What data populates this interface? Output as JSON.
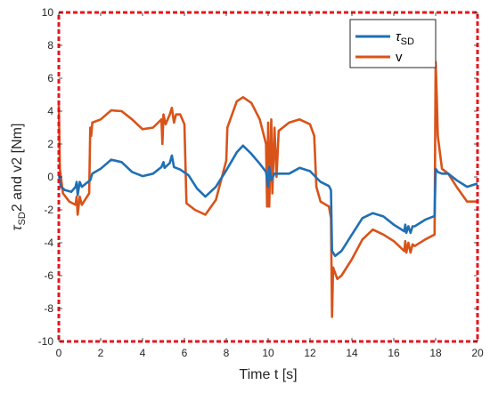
{
  "chart_data": {
    "type": "line",
    "xlabel": "Time t [s]",
    "ylabel_parts": {
      "tau": "τ",
      "sub": "SD",
      "rest": "2 and v2 [Nm]"
    },
    "xlim": [
      0,
      20
    ],
    "ylim": [
      -10,
      10
    ],
    "xticks": [
      0,
      2,
      4,
      6,
      8,
      10,
      12,
      14,
      16,
      18,
      20
    ],
    "yticks": [
      -10,
      -8,
      -6,
      -4,
      -2,
      0,
      2,
      4,
      6,
      8,
      10
    ],
    "grid": false,
    "legend_position": "top-right",
    "axes_border_color": "#e8141b",
    "series": [
      {
        "name": "τSD",
        "legend_parts": {
          "tau": "τ",
          "sub": "SD"
        },
        "color": "#1f6fb5",
        "points": [
          [
            0,
            0.2
          ],
          [
            0.1,
            -0.6
          ],
          [
            0.3,
            -0.8
          ],
          [
            0.6,
            -0.9
          ],
          [
            0.8,
            -0.6
          ],
          [
            0.85,
            -0.3
          ],
          [
            0.9,
            -1.1
          ],
          [
            1.0,
            -0.3
          ],
          [
            1.1,
            -0.6
          ],
          [
            1.3,
            -0.4
          ],
          [
            1.5,
            -0.2
          ],
          [
            1.6,
            0.2
          ],
          [
            2.0,
            0.5
          ],
          [
            2.5,
            1.05
          ],
          [
            3.0,
            0.9
          ],
          [
            3.5,
            0.3
          ],
          [
            4.0,
            0.05
          ],
          [
            4.5,
            0.2
          ],
          [
            4.9,
            0.6
          ],
          [
            5.0,
            0.9
          ],
          [
            5.05,
            0.55
          ],
          [
            5.3,
            0.85
          ],
          [
            5.4,
            1.3
          ],
          [
            5.5,
            0.6
          ],
          [
            5.8,
            0.45
          ],
          [
            6.2,
            0.1
          ],
          [
            6.6,
            -0.7
          ],
          [
            7.0,
            -1.2
          ],
          [
            7.5,
            -0.6
          ],
          [
            8.0,
            0.4
          ],
          [
            8.5,
            1.5
          ],
          [
            8.8,
            1.9
          ],
          [
            9.2,
            1.4
          ],
          [
            9.6,
            0.8
          ],
          [
            9.9,
            0.3
          ],
          [
            10.0,
            -0.6
          ],
          [
            10.05,
            0.6
          ],
          [
            10.15,
            -0.2
          ],
          [
            10.3,
            0.2
          ],
          [
            10.6,
            0.2
          ],
          [
            11.0,
            0.2
          ],
          [
            11.5,
            0.55
          ],
          [
            12.0,
            0.35
          ],
          [
            12.5,
            -0.3
          ],
          [
            12.9,
            -0.55
          ],
          [
            13.0,
            -0.8
          ],
          [
            13.05,
            -4.5
          ],
          [
            13.2,
            -4.8
          ],
          [
            13.5,
            -4.5
          ],
          [
            14.0,
            -3.5
          ],
          [
            14.5,
            -2.5
          ],
          [
            15.0,
            -2.2
          ],
          [
            15.5,
            -2.4
          ],
          [
            16.0,
            -2.9
          ],
          [
            16.5,
            -3.3
          ],
          [
            16.55,
            -2.9
          ],
          [
            16.6,
            -3.4
          ],
          [
            16.7,
            -3.0
          ],
          [
            16.8,
            -3.4
          ],
          [
            16.9,
            -3.0
          ],
          [
            17.0,
            -3.0
          ],
          [
            17.5,
            -2.6
          ],
          [
            17.9,
            -2.4
          ],
          [
            17.95,
            -2.4
          ],
          [
            18.0,
            0.5
          ],
          [
            18.1,
            0.3
          ],
          [
            18.3,
            0.2
          ],
          [
            18.6,
            0.2
          ],
          [
            19.0,
            -0.2
          ],
          [
            19.5,
            -0.6
          ],
          [
            20,
            -0.4
          ]
        ]
      },
      {
        "name": "v",
        "legend_parts": {
          "tau": "",
          "sub": "",
          "rest": "v"
        },
        "color": "#d95319",
        "points": [
          [
            0,
            4.5
          ],
          [
            0.05,
            0.5
          ],
          [
            0.2,
            -1.0
          ],
          [
            0.5,
            -1.5
          ],
          [
            0.8,
            -1.7
          ],
          [
            0.85,
            -1.2
          ],
          [
            0.9,
            -2.3
          ],
          [
            1.0,
            -1.2
          ],
          [
            1.1,
            -1.7
          ],
          [
            1.3,
            -1.3
          ],
          [
            1.45,
            -1.0
          ],
          [
            1.5,
            3.0
          ],
          [
            1.55,
            2.5
          ],
          [
            1.6,
            3.3
          ],
          [
            2.0,
            3.5
          ],
          [
            2.5,
            4.05
          ],
          [
            3.0,
            4.0
          ],
          [
            3.5,
            3.5
          ],
          [
            4.0,
            2.9
          ],
          [
            4.5,
            3.0
          ],
          [
            4.9,
            3.5
          ],
          [
            4.95,
            2.0
          ],
          [
            5.0,
            3.8
          ],
          [
            5.1,
            3.2
          ],
          [
            5.3,
            3.8
          ],
          [
            5.4,
            4.2
          ],
          [
            5.5,
            3.3
          ],
          [
            5.6,
            3.8
          ],
          [
            5.8,
            3.8
          ],
          [
            6.0,
            3.2
          ],
          [
            6.1,
            -1.6
          ],
          [
            6.5,
            -2.0
          ],
          [
            7.0,
            -2.3
          ],
          [
            7.5,
            -1.4
          ],
          [
            8.0,
            1.0
          ],
          [
            8.05,
            3.0
          ],
          [
            8.5,
            4.6
          ],
          [
            8.8,
            4.85
          ],
          [
            9.2,
            4.5
          ],
          [
            9.6,
            3.5
          ],
          [
            9.8,
            2.5
          ],
          [
            9.9,
            2.0
          ],
          [
            9.95,
            -1.8
          ],
          [
            10.0,
            3.3
          ],
          [
            10.05,
            -1.8
          ],
          [
            10.15,
            3.5
          ],
          [
            10.2,
            -1.0
          ],
          [
            10.3,
            3.0
          ],
          [
            10.4,
            0.0
          ],
          [
            10.5,
            2.8
          ],
          [
            11.0,
            3.3
          ],
          [
            11.5,
            3.5
          ],
          [
            12.0,
            3.2
          ],
          [
            12.2,
            2.5
          ],
          [
            12.3,
            -0.6
          ],
          [
            12.5,
            -1.5
          ],
          [
            12.9,
            -1.8
          ],
          [
            13.0,
            -2.5
          ],
          [
            13.05,
            -8.5
          ],
          [
            13.1,
            -5.5
          ],
          [
            13.3,
            -6.2
          ],
          [
            13.5,
            -6.0
          ],
          [
            14.0,
            -5.0
          ],
          [
            14.5,
            -3.8
          ],
          [
            15.0,
            -3.2
          ],
          [
            15.5,
            -3.5
          ],
          [
            16.0,
            -3.9
          ],
          [
            16.5,
            -4.5
          ],
          [
            16.55,
            -3.9
          ],
          [
            16.6,
            -4.6
          ],
          [
            16.7,
            -4.0
          ],
          [
            16.8,
            -4.6
          ],
          [
            16.9,
            -4.1
          ],
          [
            17.0,
            -4.2
          ],
          [
            17.5,
            -3.8
          ],
          [
            17.95,
            -3.5
          ],
          [
            18.0,
            7.0
          ],
          [
            18.05,
            5.0
          ],
          [
            18.1,
            2.5
          ],
          [
            18.3,
            0.5
          ],
          [
            18.6,
            0.2
          ],
          [
            19.0,
            -0.6
          ],
          [
            19.5,
            -1.5
          ],
          [
            20,
            -1.5
          ]
        ]
      }
    ]
  }
}
